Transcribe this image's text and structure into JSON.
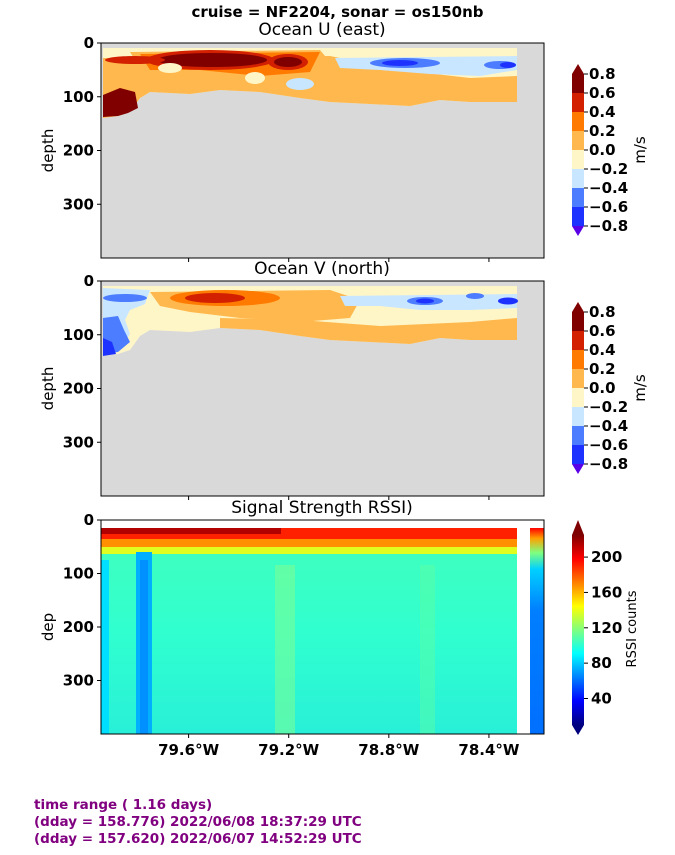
{
  "suptitle": "cruise = NF2204,  sonar = os150nb",
  "footer": {
    "line1": "time range ( 1.16 days)",
    "line2": "(dday = 158.776) 2022/06/08 18:37:29 UTC",
    "line3": "(dday = 157.620) 2022/06/07 14:52:29 UTC"
  },
  "colors": {
    "missing": "#d9d9d9",
    "diverging": [
      "#5a00e6",
      "#1e32ff",
      "#4c7cff",
      "#c8e6ff",
      "#fff6c8",
      "#ffb84d",
      "#ff7a00",
      "#d22000",
      "#800000"
    ],
    "jet_stops": [
      "#00007f",
      "#0000ff",
      "#007fff",
      "#00ffff",
      "#7fff7f",
      "#ffff00",
      "#ff7f00",
      "#ff0000",
      "#7f0000"
    ]
  },
  "chart_data": [
    {
      "type": "heatmap",
      "title": "Ocean U (east)",
      "xlabel": "",
      "ylabel": "depth",
      "x_ticks": [
        "79.6°W",
        "79.2°W",
        "78.8°W",
        "78.4°W"
      ],
      "x_tick_values": [
        -79.6,
        -79.2,
        -78.8,
        -78.4
      ],
      "xlim": [
        -79.95,
        -78.18
      ],
      "y_ticks": [
        "0",
        "100",
        "200",
        "300"
      ],
      "ylim": [
        400,
        0
      ],
      "colorbar": {
        "label": "m/s",
        "ticks": [
          "0.8",
          "0.6",
          "0.4",
          "0.2",
          "0.0",
          "−0.2",
          "−0.4",
          "−0.6",
          "−0.8"
        ],
        "range": [
          -0.8,
          0.8
        ]
      },
      "features": [
        {
          "lon": -79.35,
          "depth": 32,
          "value": 0.8
        },
        {
          "lon": -79.05,
          "depth": 35,
          "value": 0.8
        },
        {
          "lon": -79.85,
          "depth": 105,
          "value": 0.8
        },
        {
          "lon": -78.7,
          "depth": 38,
          "value": -0.6
        },
        {
          "lon": -78.24,
          "depth": 38,
          "value": -0.6
        }
      ]
    },
    {
      "type": "heatmap",
      "title": "Ocean V (north)",
      "xlabel": "",
      "ylabel": "depth",
      "x_ticks": [
        "79.6°W",
        "79.2°W",
        "78.8°W",
        "78.4°W"
      ],
      "x_tick_values": [
        -79.6,
        -79.2,
        -78.8,
        -78.4
      ],
      "xlim": [
        -79.95,
        -78.18
      ],
      "y_ticks": [
        "0",
        "100",
        "200",
        "300"
      ],
      "ylim": [
        400,
        0
      ],
      "colorbar": {
        "label": "m/s",
        "ticks": [
          "0.8",
          "0.6",
          "0.4",
          "0.2",
          "0.0",
          "−0.2",
          "−0.4",
          "−0.6",
          "−0.8"
        ],
        "range": [
          -0.8,
          0.8
        ]
      },
      "features": [
        {
          "lon": -79.45,
          "depth": 30,
          "value": 0.6
        },
        {
          "lon": -79.85,
          "depth": 105,
          "value": -0.8
        },
        {
          "lon": -78.7,
          "depth": 38,
          "value": -0.6
        },
        {
          "lon": -78.24,
          "depth": 38,
          "value": -0.6
        }
      ]
    },
    {
      "type": "heatmap",
      "title": "Signal Strength RSSI)",
      "xlabel": "",
      "ylabel": "dep",
      "x_ticks": [
        "79.6°W",
        "79.2°W",
        "78.8°W",
        "78.4°W"
      ],
      "x_tick_values": [
        -79.6,
        -79.2,
        -78.8,
        -78.4
      ],
      "xlim": [
        -79.95,
        -78.18
      ],
      "y_ticks": [
        "0",
        "100",
        "200",
        "300"
      ],
      "ylim": [
        400,
        0
      ],
      "colorbar": {
        "label": "RSSI counts",
        "ticks": [
          "200",
          "160",
          "120",
          "80",
          "40"
        ],
        "range": [
          10,
          225
        ]
      },
      "features": [
        {
          "lon": -79.7,
          "depth": 200,
          "value": 60
        },
        {
          "lon": -79.2,
          "depth": 200,
          "value": 115
        },
        {
          "lon": -78.8,
          "depth": 30,
          "value": 205
        }
      ]
    }
  ]
}
